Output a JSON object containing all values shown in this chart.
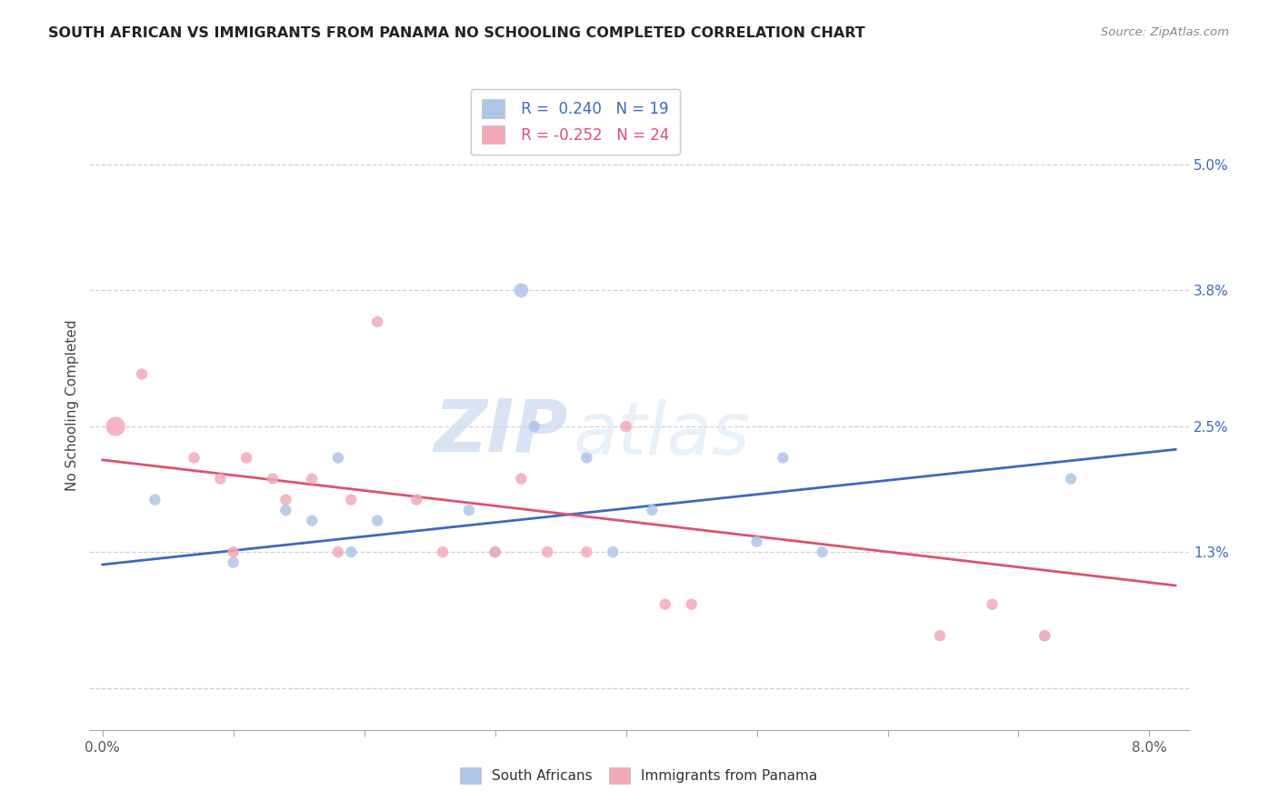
{
  "title": "SOUTH AFRICAN VS IMMIGRANTS FROM PANAMA NO SCHOOLING COMPLETED CORRELATION CHART",
  "source": "Source: ZipAtlas.com",
  "ylabel": "No Schooling Completed",
  "ytick_vals": [
    0.0,
    0.013,
    0.025,
    0.038,
    0.05
  ],
  "ytick_labels": [
    "",
    "1.3%",
    "2.5%",
    "3.8%",
    "5.0%"
  ],
  "xlim": [
    -0.001,
    0.083
  ],
  "ylim": [
    -0.004,
    0.058
  ],
  "watermark_zip": "ZIP",
  "watermark_atlas": "atlas",
  "legend_r_blue": "R =  0.240",
  "legend_n_blue": "N = 19",
  "legend_r_pink": "R = -0.252",
  "legend_n_pink": "N = 24",
  "blue_x": [
    0.004,
    0.01,
    0.014,
    0.016,
    0.018,
    0.019,
    0.021,
    0.028,
    0.03,
    0.032,
    0.033,
    0.037,
    0.039,
    0.042,
    0.05,
    0.052,
    0.055,
    0.072,
    0.074
  ],
  "blue_y": [
    0.018,
    0.012,
    0.017,
    0.016,
    0.022,
    0.013,
    0.016,
    0.017,
    0.013,
    0.038,
    0.025,
    0.022,
    0.013,
    0.017,
    0.014,
    0.022,
    0.013,
    0.005,
    0.02
  ],
  "blue_sizes": [
    80,
    80,
    80,
    80,
    80,
    80,
    80,
    80,
    80,
    130,
    80,
    80,
    80,
    80,
    80,
    80,
    80,
    80,
    80
  ],
  "pink_x": [
    0.001,
    0.003,
    0.007,
    0.009,
    0.01,
    0.011,
    0.013,
    0.014,
    0.016,
    0.018,
    0.019,
    0.021,
    0.024,
    0.026,
    0.03,
    0.032,
    0.034,
    0.037,
    0.04,
    0.043,
    0.045,
    0.064,
    0.068,
    0.072
  ],
  "pink_y": [
    0.025,
    0.03,
    0.022,
    0.02,
    0.013,
    0.022,
    0.02,
    0.018,
    0.02,
    0.013,
    0.018,
    0.035,
    0.018,
    0.013,
    0.013,
    0.02,
    0.013,
    0.013,
    0.025,
    0.008,
    0.008,
    0.005,
    0.008,
    0.005
  ],
  "pink_sizes": [
    230,
    80,
    80,
    80,
    80,
    80,
    80,
    80,
    80,
    80,
    80,
    80,
    80,
    80,
    80,
    80,
    80,
    80,
    80,
    80,
    80,
    80,
    80,
    80
  ],
  "blue_color": "#aec6e8",
  "pink_color": "#f4a8b8",
  "blue_line_color": "#3b6abf",
  "pink_line_color": "#e05070",
  "grid_color": "#d0d0d0",
  "bg_color": "#ffffff",
  "blue_trend": [
    0.0,
    0.082,
    0.0118,
    0.0228
  ],
  "pink_trend": [
    0.0,
    0.082,
    0.0218,
    0.0098
  ],
  "xtick_positions": [
    0.0,
    0.01,
    0.02,
    0.03,
    0.04,
    0.05,
    0.06,
    0.07,
    0.08
  ]
}
